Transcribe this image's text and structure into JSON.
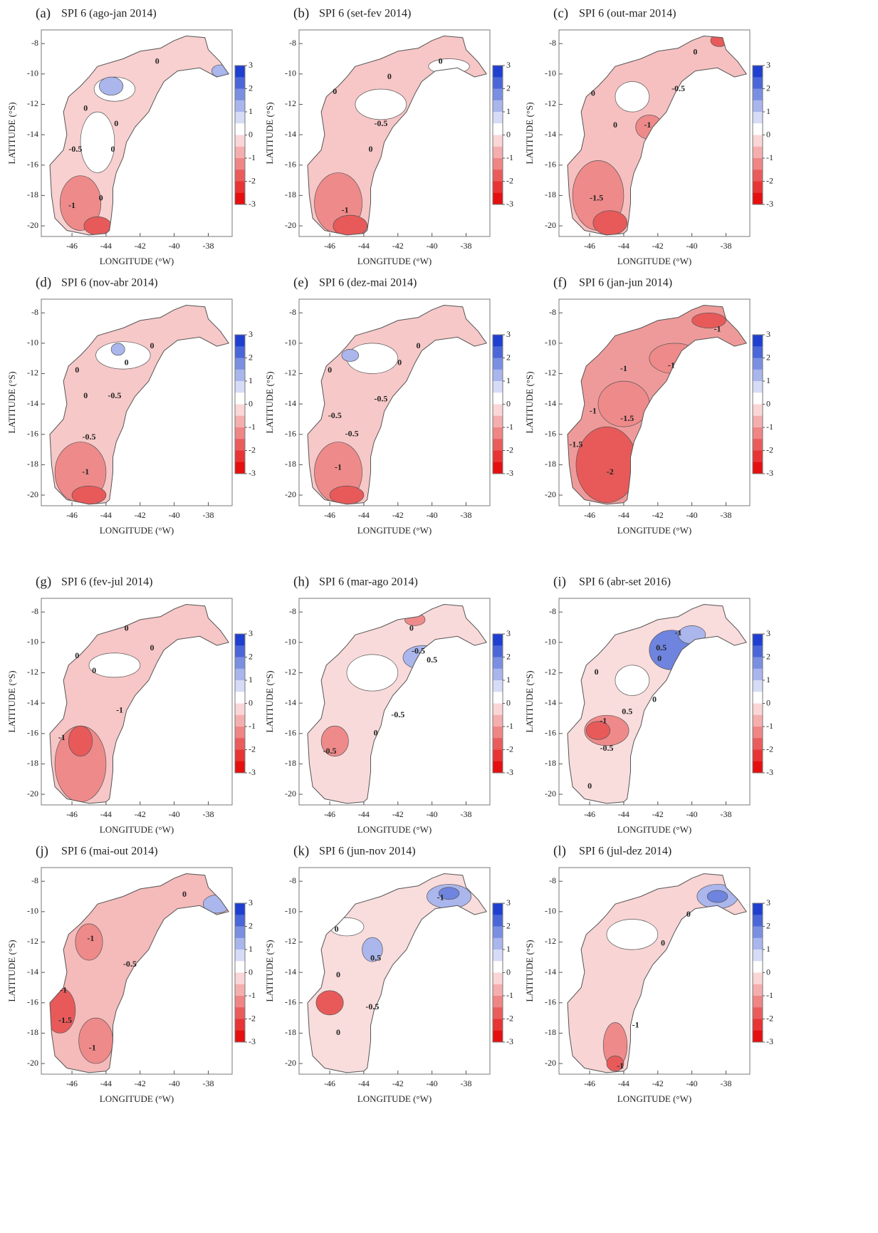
{
  "figure": {
    "x_label": "LONGITUDE (°W)",
    "y_label": "LATITUDE (°S)",
    "xlim": [
      -47.8,
      -36.6
    ],
    "ylim": [
      -20.7,
      -7.1
    ],
    "xticks": [
      -46,
      -44,
      -42,
      -40,
      -38
    ],
    "yticks": [
      -8,
      -10,
      -12,
      -14,
      -16,
      -18,
      -20
    ],
    "colorbar": {
      "ticks": [
        3,
        2,
        1,
        0,
        -1,
        -2,
        -3
      ],
      "colors": [
        "#1f3fd0",
        "#4a66d8",
        "#7b8fe2",
        "#a9b6ec",
        "#d6dcf6",
        "#ffffff",
        "#fbd6d6",
        "#f5aeae",
        "#ef8585",
        "#ea5c5c",
        "#e83434",
        "#e50f0f"
      ]
    }
  },
  "panels": [
    {
      "label": "(a)",
      "title": "SPI 6 (ago-jan 2014)",
      "fill": "#f8d0d0",
      "contour_labels": [
        0,
        0,
        0,
        -0.5,
        0,
        -1,
        0
      ]
    },
    {
      "label": "(b)",
      "title": "SPI 6 (set-fev 2014)",
      "fill": "#f7c6c6",
      "contour_labels": [
        0,
        0,
        0,
        -0.5,
        0,
        -1
      ]
    },
    {
      "label": "(c)",
      "title": "SPI 6 (out-mar 2014)",
      "fill": "#f6c0c0",
      "contour_labels": [
        0,
        -0.5,
        0,
        0,
        -1,
        -1.5
      ]
    },
    {
      "label": "(d)",
      "title": "SPI 6 (nov-abr 2014)",
      "fill": "#f7c8c8",
      "contour_labels": [
        0,
        0,
        0,
        -0.5,
        0,
        -0.5,
        -1
      ]
    },
    {
      "label": "(e)",
      "title": "SPI 6 (dez-mai 2014)",
      "fill": "#f7c8c8",
      "contour_labels": [
        0,
        0,
        0,
        -0.5,
        -0.5,
        -0.5,
        -1
      ]
    },
    {
      "label": "(f)",
      "title": "SPI 6 (jan-jun 2014)",
      "fill": "#ef9a9a",
      "contour_labels": [
        -1,
        -1,
        -1,
        -1,
        -1.5,
        -1.5,
        -2
      ]
    },
    {
      "label": "(g)",
      "title": "SPI 6 (fev-jul 2014)",
      "fill": "#f7c6c6",
      "contour_labels": [
        0,
        0,
        0,
        0,
        -1,
        -1
      ]
    },
    {
      "label": "(h)",
      "title": "SPI 6 (mar-ago 2014)",
      "fill": "#f9dada",
      "contour_labels": [
        0,
        -0.5,
        0.5,
        -0.5,
        0,
        -0.5
      ]
    },
    {
      "label": "(i)",
      "title": "SPI 6 (abr-set 2016)",
      "fill": "#f9dcdc",
      "contour_labels": [
        -1,
        0.5,
        0,
        0,
        0,
        0.5,
        -1,
        -0.5,
        0
      ]
    },
    {
      "label": "(j)",
      "title": "SPI 6 (mai-out 2014)",
      "fill": "#f5baba",
      "contour_labels": [
        0,
        -1,
        -0.5,
        -1,
        -1.5,
        -1
      ]
    },
    {
      "label": "(k)",
      "title": "SPI 6 (jun-nov 2014)",
      "fill": "#f9dcdc",
      "contour_labels": [
        -1,
        0,
        0.5,
        0,
        -0.5,
        0
      ]
    },
    {
      "label": "(l)",
      "title": "SPI 6 (jul-dez 2014)",
      "fill": "#f8d4d4",
      "contour_labels": [
        0,
        0,
        -1,
        -1
      ]
    }
  ]
}
